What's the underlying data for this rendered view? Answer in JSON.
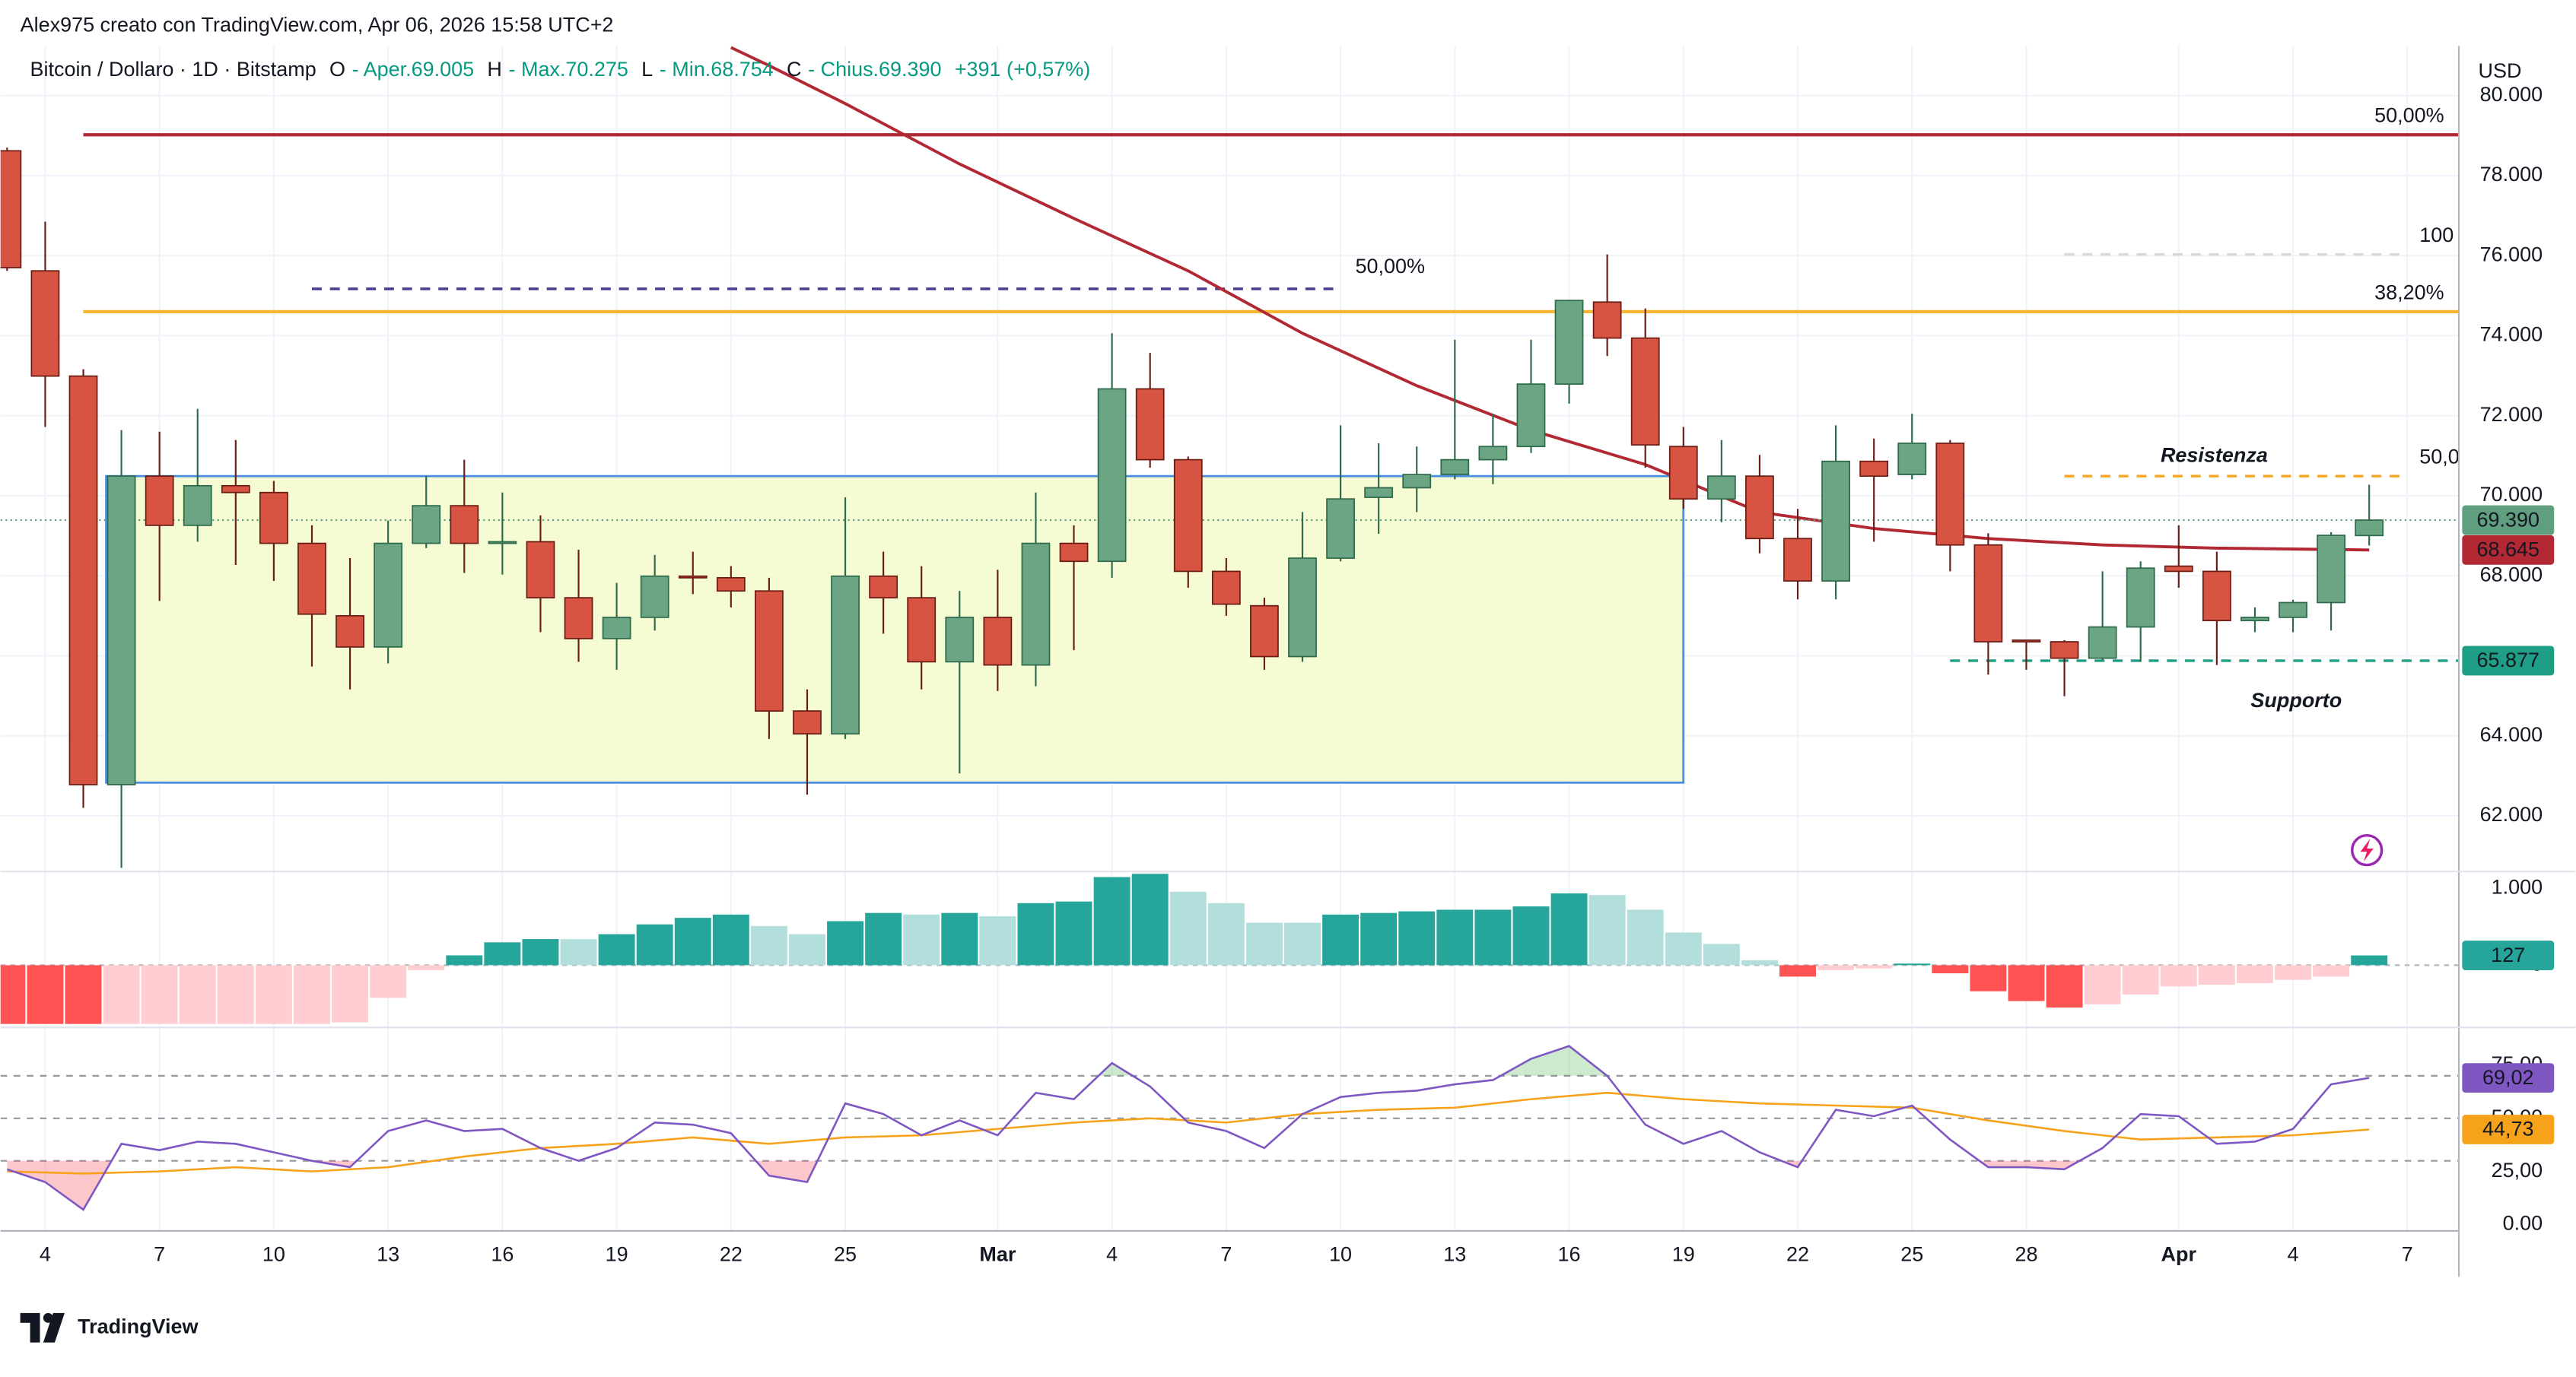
{
  "header": {
    "credit": "Alex975 creato con TradingView.com, Apr 06, 2026 15:58 UTC+2"
  },
  "footer": {
    "brand": "TradingView"
  },
  "chart_data": [
    {
      "type": "candlestick",
      "symbol": "Bitcoin / Dollaro · 1D · Bitstamp",
      "legend": [
        {
          "key": "O",
          "name": "- Aper.",
          "value": "69.005"
        },
        {
          "key": "H",
          "name": "- Max.",
          "value": "70.275"
        },
        {
          "key": "L",
          "name": "- Min.",
          "value": "68.754"
        },
        {
          "key": "C",
          "name": "- Chius.",
          "value": "69.390"
        }
      ],
      "change": "+391 (+0,57%)",
      "currency": "USD",
      "categories": [
        "2026-02-03",
        "2026-02-04",
        "2026-02-05",
        "2026-02-06",
        "2026-02-07",
        "2026-02-08",
        "2026-02-09",
        "2026-02-10",
        "2026-02-11",
        "2026-02-12",
        "2026-02-13",
        "2026-02-14",
        "2026-02-15",
        "2026-02-16",
        "2026-02-17",
        "2026-02-18",
        "2026-02-19",
        "2026-02-20",
        "2026-02-21",
        "2026-02-22",
        "2026-02-23",
        "2026-02-24",
        "2026-02-25",
        "2026-02-26",
        "2026-02-27",
        "2026-02-28",
        "2026-03-01",
        "2026-03-02",
        "2026-03-03",
        "2026-03-04",
        "2026-03-05",
        "2026-03-06",
        "2026-03-07",
        "2026-03-08",
        "2026-03-09",
        "2026-03-10",
        "2026-03-11",
        "2026-03-12",
        "2026-03-13",
        "2026-03-14",
        "2026-03-15",
        "2026-03-16",
        "2026-03-17",
        "2026-03-18",
        "2026-03-19",
        "2026-03-20",
        "2026-03-21",
        "2026-03-22",
        "2026-03-23",
        "2026-03-24",
        "2026-03-25",
        "2026-03-26",
        "2026-03-27",
        "2026-03-28",
        "2026-03-29",
        "2026-03-30",
        "2026-03-31",
        "2026-04-01",
        "2026-04-02",
        "2026-04-03",
        "2026-04-04",
        "2026-04-05",
        "2026-04-06"
      ],
      "open": [
        78620,
        75620,
        72990,
        62780,
        70490,
        69260,
        70250,
        70080,
        68810,
        67000,
        66220,
        68810,
        69750,
        68810,
        68850,
        67450,
        66430,
        66960,
        67990,
        67950,
        67620,
        64620,
        64050,
        67990,
        67450,
        65850,
        66960,
        65770,
        68810,
        68360,
        72670,
        70900,
        68110,
        67250,
        65980,
        68440,
        69960,
        70200,
        70530,
        70900,
        71230,
        72790,
        74840,
        73940,
        71230,
        69920,
        70490,
        68930,
        67870,
        70860,
        70530,
        71310,
        68770,
        66390,
        66350,
        65940,
        66720,
        68240,
        68110,
        66880,
        66960,
        67330,
        69005
      ],
      "high": [
        78700,
        76850,
        73160,
        71640,
        71600,
        72170,
        71390,
        70370,
        69260,
        68440,
        69380,
        70490,
        70900,
        70080,
        69510,
        68650,
        67820,
        68520,
        68600,
        68240,
        67950,
        65160,
        69960,
        68600,
        68240,
        67620,
        68150,
        70080,
        69260,
        74060,
        73570,
        70980,
        68440,
        67450,
        69590,
        71760,
        71310,
        71230,
        73900,
        72050,
        73900,
        74880,
        76030,
        74680,
        71720,
        71390,
        71020,
        69670,
        71760,
        71430,
        72050,
        71390,
        69060,
        66390,
        66390,
        68110,
        68360,
        69260,
        68600,
        67210,
        67400,
        69090,
        70275
      ],
      "low": [
        75620,
        71720,
        62200,
        60700,
        67370,
        68850,
        68270,
        67870,
        65730,
        65160,
        65810,
        68690,
        68070,
        68030,
        66590,
        65850,
        65650,
        66630,
        67540,
        67210,
        63920,
        62530,
        63920,
        66550,
        65160,
        63060,
        65120,
        65240,
        66140,
        67950,
        70700,
        67700,
        67000,
        65650,
        65850,
        68360,
        69050,
        69590,
        70410,
        70290,
        71070,
        72300,
        73490,
        70700,
        69670,
        69340,
        68560,
        67410,
        67410,
        68850,
        70410,
        68110,
        65530,
        65650,
        64990,
        65900,
        65850,
        67700,
        65770,
        66590,
        66590,
        66630,
        68754
      ],
      "close": [
        75700,
        72990,
        62780,
        70490,
        69260,
        70250,
        70080,
        68810,
        67040,
        66220,
        68810,
        69750,
        68810,
        68850,
        67450,
        66430,
        66960,
        67990,
        67950,
        67620,
        64620,
        64050,
        67990,
        67450,
        65850,
        66960,
        65770,
        68810,
        68360,
        72670,
        70900,
        68110,
        67290,
        65980,
        68440,
        69920,
        70200,
        70530,
        70900,
        71230,
        72790,
        74880,
        73940,
        71270,
        69920,
        70490,
        68930,
        67870,
        70860,
        70490,
        71310,
        68770,
        66350,
        66350,
        65940,
        66720,
        68190,
        68110,
        66880,
        66960,
        67330,
        69010,
        69390
      ],
      "up_color": "#6ba583",
      "up_border": "#2e6b4b",
      "down_color": "#d75442",
      "down_border": "#6b1d14",
      "ylim": [
        60650,
        81240
      ],
      "yticks": [
        {
          "value": 62000,
          "label": "62.000"
        },
        {
          "value": 64000,
          "label": "64.000"
        },
        {
          "value": 66000,
          "label": "66.000"
        },
        {
          "value": 68000,
          "label": "68.000"
        },
        {
          "value": 70000,
          "label": "70.000"
        },
        {
          "value": 72000,
          "label": "72.000"
        },
        {
          "value": 74000,
          "label": "74.000"
        },
        {
          "value": 76000,
          "label": "76.000"
        },
        {
          "value": 78000,
          "label": "78.000"
        },
        {
          "value": 80000,
          "label": "80.000"
        }
      ],
      "xticks": [
        {
          "value": "2026-02-04",
          "label": "4"
        },
        {
          "value": "2026-02-07",
          "label": "7"
        },
        {
          "value": "2026-02-10",
          "label": "10"
        },
        {
          "value": "2026-02-13",
          "label": "13"
        },
        {
          "value": "2026-02-16",
          "label": "16"
        },
        {
          "value": "2026-02-19",
          "label": "19"
        },
        {
          "value": "2026-02-22",
          "label": "22"
        },
        {
          "value": "2026-02-25",
          "label": "25"
        },
        {
          "value": "2026-03-01",
          "label": "Mar"
        },
        {
          "value": "2026-03-04",
          "label": "4"
        },
        {
          "value": "2026-03-07",
          "label": "7"
        },
        {
          "value": "2026-03-10",
          "label": "10"
        },
        {
          "value": "2026-03-13",
          "label": "13"
        },
        {
          "value": "2026-03-16",
          "label": "16"
        },
        {
          "value": "2026-03-19",
          "label": "19"
        },
        {
          "value": "2026-03-22",
          "label": "22"
        },
        {
          "value": "2026-03-25",
          "label": "25"
        },
        {
          "value": "2026-03-28",
          "label": "28"
        },
        {
          "value": "2026-04-01",
          "label": "Apr"
        },
        {
          "value": "2026-04-04",
          "label": "4"
        },
        {
          "value": "2026-04-07",
          "label": "7"
        }
      ],
      "grid": true,
      "moving_average": {
        "color": "#b22833",
        "x": [
          "2026-02-22",
          "2026-02-23",
          "2026-02-25",
          "2026-02-28",
          "2026-03-03",
          "2026-03-06",
          "2026-03-09",
          "2026-03-12",
          "2026-03-15",
          "2026-03-18",
          "2026-03-21",
          "2026-03-24",
          "2026-03-27",
          "2026-03-30",
          "2026-04-02",
          "2026-04-06"
        ],
        "values": [
          81200,
          80750,
          79800,
          78290,
          76930,
          75620,
          74060,
          72750,
          71640,
          70780,
          69590,
          69180,
          68930,
          68770,
          68690,
          68645
        ],
        "last": {
          "value": 68645,
          "label": "68.645"
        }
      },
      "last_price": {
        "value": 69390,
        "label": "69.390",
        "color": "#5f9e7e"
      },
      "range_box": {
        "from": "2026-02-06",
        "to": "2026-03-19",
        "top": 70490,
        "bottom": 62830,
        "color": "#4a90e2",
        "fill": "#f5fbd2"
      },
      "levels": [
        {
          "value": 79020,
          "label": "50,00%",
          "color": "#b22833",
          "style": "solid",
          "from": "2026-02-05"
        },
        {
          "value": 74600,
          "label": "38,20%",
          "color": "#f5b731",
          "style": "solid",
          "from": "2026-02-05"
        },
        {
          "value": 75170,
          "label": "50,00%",
          "color": "#4b3b8f",
          "style": "dashed",
          "from": "2026-02-11",
          "to": "2026-03-10"
        },
        {
          "value": 76030,
          "label": "100",
          "color": "#d9d9d9",
          "style": "dashed",
          "from": "2026-03-29",
          "to": "2026-04-07"
        },
        {
          "value": 70490,
          "label": "50,0",
          "note": "Resistenza",
          "color": "#f5a623",
          "style": "dashed",
          "from": "2026-03-29",
          "to": "2026-04-07"
        },
        {
          "value": 65877,
          "label": "65.877",
          "note": "Supporto",
          "color": "#1e9e84",
          "style": "dashed",
          "from": "2026-03-26"
        }
      ]
    },
    {
      "type": "histogram",
      "values": [
        -766,
        -766,
        -766,
        -766,
        -766,
        -766,
        -766,
        -766,
        -766,
        -745,
        -426,
        -64,
        128,
        298,
        340,
        340,
        404,
        532,
        617,
        660,
        511,
        404,
        574,
        681,
        660,
        681,
        638,
        809,
        830,
        1149,
        1191,
        957,
        809,
        553,
        553,
        660,
        681,
        702,
        723,
        723,
        766,
        936,
        915,
        723,
        426,
        277,
        64,
        -149,
        -64,
        -43,
        21,
        -106,
        -340,
        -468,
        -553,
        -511,
        -383,
        -277,
        -255,
        -234,
        -191,
        -149,
        127
      ],
      "colors": [
        "#ff5252",
        "#ff5252",
        "#ff5252",
        "#ffcdd2",
        "#ffcdd2",
        "#ffcdd2",
        "#ffcdd2",
        "#ffcdd2",
        "#ffcdd2",
        "#ffcdd2",
        "#ffcdd2",
        "#ffcdd2",
        "#26a69a",
        "#26a69a",
        "#26a69a",
        "#b2dfdb",
        "#26a69a",
        "#26a69a",
        "#26a69a",
        "#26a69a",
        "#b2dfdb",
        "#b2dfdb",
        "#26a69a",
        "#26a69a",
        "#b2dfdb",
        "#26a69a",
        "#b2dfdb",
        "#26a69a",
        "#26a69a",
        "#26a69a",
        "#26a69a",
        "#b2dfdb",
        "#b2dfdb",
        "#b2dfdb",
        "#b2dfdb",
        "#26a69a",
        "#26a69a",
        "#26a69a",
        "#26a69a",
        "#26a69a",
        "#26a69a",
        "#26a69a",
        "#b2dfdb",
        "#b2dfdb",
        "#b2dfdb",
        "#b2dfdb",
        "#b2dfdb",
        "#ff5252",
        "#ffcdd2",
        "#ffcdd2",
        "#26a69a",
        "#ff5252",
        "#ff5252",
        "#ff5252",
        "#ff5252",
        "#ffcdd2",
        "#ffcdd2",
        "#ffcdd2",
        "#ffcdd2",
        "#ffcdd2",
        "#ffcdd2",
        "#ffcdd2",
        "#26a69a"
      ],
      "ylim": [
        -790,
        1200
      ],
      "yticks": [
        {
          "value": 1000,
          "label": "1.000"
        },
        0
      ],
      "last": {
        "value": 127,
        "label": "127",
        "color": "#26a69a"
      }
    },
    {
      "type": "rsi",
      "values": [
        26,
        20,
        7,
        38,
        35,
        39,
        38,
        34,
        30,
        27,
        44,
        49,
        44,
        45,
        36,
        30,
        36,
        48,
        47,
        43,
        23,
        20,
        57,
        52,
        42,
        49,
        42,
        62,
        59,
        76,
        65,
        48,
        44,
        36,
        52,
        60,
        62,
        63,
        66,
        68,
        78,
        84,
        70,
        47,
        38,
        44,
        34,
        27,
        54,
        51,
        56,
        40,
        27,
        27,
        26,
        36,
        52,
        51,
        38,
        39,
        45,
        66,
        69.02
      ],
      "color": "#7e57c2",
      "moving_average": {
        "color": "#f7a21b",
        "x": [
          "2026-02-03",
          "2026-02-05",
          "2026-02-07",
          "2026-02-09",
          "2026-02-11",
          "2026-02-13",
          "2026-02-15",
          "2026-02-17",
          "2026-02-19",
          "2026-02-21",
          "2026-02-23",
          "2026-02-25",
          "2026-02-27",
          "2026-03-01",
          "2026-03-03",
          "2026-03-05",
          "2026-03-07",
          "2026-03-09",
          "2026-03-11",
          "2026-03-13",
          "2026-03-15",
          "2026-03-17",
          "2026-03-19",
          "2026-03-21",
          "2026-03-23",
          "2026-03-25",
          "2026-03-27",
          "2026-03-29",
          "2026-03-31",
          "2026-04-02",
          "2026-04-04",
          "2026-04-06"
        ],
        "values": [
          25,
          24,
          25,
          27,
          25,
          27,
          32,
          36,
          38,
          41,
          38,
          41,
          42,
          45,
          48,
          50,
          48,
          52,
          54,
          55,
          59,
          62,
          59,
          57,
          56,
          55,
          49,
          44,
          40,
          41,
          42,
          44.73
        ],
        "last": {
          "value": 44.73,
          "label": "44,73"
        }
      },
      "last": {
        "value": 69.02,
        "label": "69,02"
      },
      "ylim": [
        -3,
        92
      ],
      "yticks": [
        {
          "value": 0,
          "label": "0.00"
        },
        {
          "value": 25,
          "label": "25,00"
        },
        {
          "value": 50,
          "label": "50,00"
        },
        {
          "value": 75,
          "label": "75,00"
        }
      ],
      "bands": [
        70,
        50,
        30
      ]
    }
  ]
}
